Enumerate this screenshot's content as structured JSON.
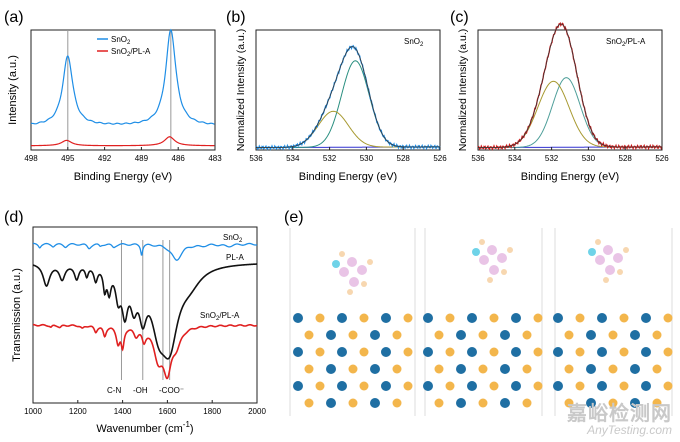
{
  "chart_data": [
    {
      "panel": "(a)",
      "type": "line",
      "xlabel": "Binding Energy (eV)",
      "ylabel": "Intensity (a.u.)",
      "xlim": [
        498,
        483
      ],
      "xticks": [
        "498",
        "495",
        "492",
        "489",
        "486",
        "483"
      ],
      "reference_lines_x": [
        495.0,
        486.6
      ],
      "legend": [
        "SnO2",
        "SnO2/PL-A"
      ],
      "series": [
        {
          "name": "SnO2",
          "color": "#1f8ee6",
          "baseline": 0.2,
          "peaks": [
            {
              "x": 495.0,
              "h": 0.58,
              "w": 0.5
            },
            {
              "x": 486.6,
              "h": 0.8,
              "w": 0.5
            }
          ]
        },
        {
          "name": "SnO2/PL-A",
          "color": "#e02020",
          "baseline": 0.035,
          "peaks": [
            {
              "x": 495.1,
              "h": 0.045,
              "w": 0.5
            },
            {
              "x": 486.7,
              "h": 0.075,
              "w": 0.5
            }
          ]
        }
      ]
    },
    {
      "panel": "(b)",
      "type": "line",
      "label": "SnO2",
      "xlabel": "Binding Energy (eV)",
      "ylabel": "Normalized Intensity (a.u.)",
      "xlim": [
        536,
        526
      ],
      "xticks": [
        "536",
        "534",
        "532",
        "530",
        "528",
        "526"
      ],
      "baseline": 0.02,
      "components": [
        {
          "name": "fit-1",
          "color": "#2a8f80",
          "center": 530.6,
          "height": 0.72,
          "sigma": 0.75
        },
        {
          "name": "fit-2",
          "color": "#a89a32",
          "center": 531.8,
          "height": 0.3,
          "sigma": 0.82
        }
      ],
      "curves": [
        {
          "name": "measured",
          "color": "#1f8ee6"
        },
        {
          "name": "envelope",
          "color": "#3a3a3a"
        },
        {
          "name": "background",
          "color": "#3030d0"
        }
      ]
    },
    {
      "panel": "(c)",
      "type": "line",
      "label": "SnO2/PL-A",
      "xlabel": "Binding Energy (eV)",
      "ylabel": "Normalized Intensity (a.u.)",
      "xlim": [
        536,
        526
      ],
      "xticks": [
        "536",
        "534",
        "532",
        "530",
        "528",
        "526"
      ],
      "baseline": 0.02,
      "components": [
        {
          "name": "fit-1",
          "color": "#4f9f9a",
          "center": 531.2,
          "height": 0.58,
          "sigma": 0.75
        },
        {
          "name": "fit-2",
          "color": "#a89a32",
          "center": 531.9,
          "height": 0.55,
          "sigma": 0.85
        }
      ],
      "curves": [
        {
          "name": "measured",
          "color": "#d01818"
        },
        {
          "name": "envelope",
          "color": "#3a3a3a"
        },
        {
          "name": "background",
          "color": "#3030d0"
        }
      ]
    },
    {
      "panel": "(d)",
      "type": "line",
      "xlabel": "Wavenumber (cm⁻¹)",
      "ylabel": "Transmission (a.u.)",
      "xlim": [
        1000,
        2000
      ],
      "xticks": [
        "1000",
        "1200",
        "1400",
        "1600",
        "1800",
        "2000"
      ],
      "reference_lines_x": [
        1395,
        1490,
        1580,
        1610
      ],
      "annotations": [
        "C-N",
        "-OH",
        "-COO⁻"
      ],
      "series": [
        {
          "name": "SnO2",
          "color": "#1f8ee6",
          "label": "SnO2"
        },
        {
          "name": "PL-A",
          "color": "#111111",
          "label": "PL-A"
        },
        {
          "name": "SnO2/PL-A",
          "color": "#e02020",
          "label": "SnO2/PL-A"
        }
      ]
    }
  ],
  "panel_e": {
    "label": "(e)",
    "structures": [
      "structure-1",
      "structure-2",
      "structure-3"
    ]
  },
  "text": {
    "a_label": "(a)",
    "b_label": "(b)",
    "c_label": "(c)",
    "d_label": "(d)",
    "e_label": "(e)",
    "a_leg1_main": "SnO",
    "a_leg1_sub": "2",
    "a_leg2_main": "SnO",
    "a_leg2_sub": "2",
    "a_leg2_tail": "/PL-A",
    "b_tag_main": "SnO",
    "b_tag_sub": "2",
    "c_tag_main": "SnO",
    "c_tag_sub": "2",
    "c_tag_tail": "/PL-A",
    "d_s1_main": "SnO",
    "d_s1_sub": "2",
    "d_s2": "PL-A",
    "d_s3_main": "SnO",
    "d_s3_sub": "2",
    "d_s3_tail": "/PL-A",
    "d_ann_cn": "C-N",
    "d_ann_oh": "-OH",
    "d_ann_coo": "-COO⁻",
    "xps_xlabel": "Binding Energy (eV)",
    "a_ylabel": "Intensity (a.u.)",
    "norm_ylabel": "Normalized Intensity (a.u.)",
    "d_ylabel": "Transmission (a.u.)",
    "d_xlabel_main": "Wavenumber (cm",
    "d_xlabel_sup": "-1",
    "d_xlabel_close": ")",
    "wm_cn": "嘉峪检测网",
    "wm_en": "AnyTesting.com"
  }
}
